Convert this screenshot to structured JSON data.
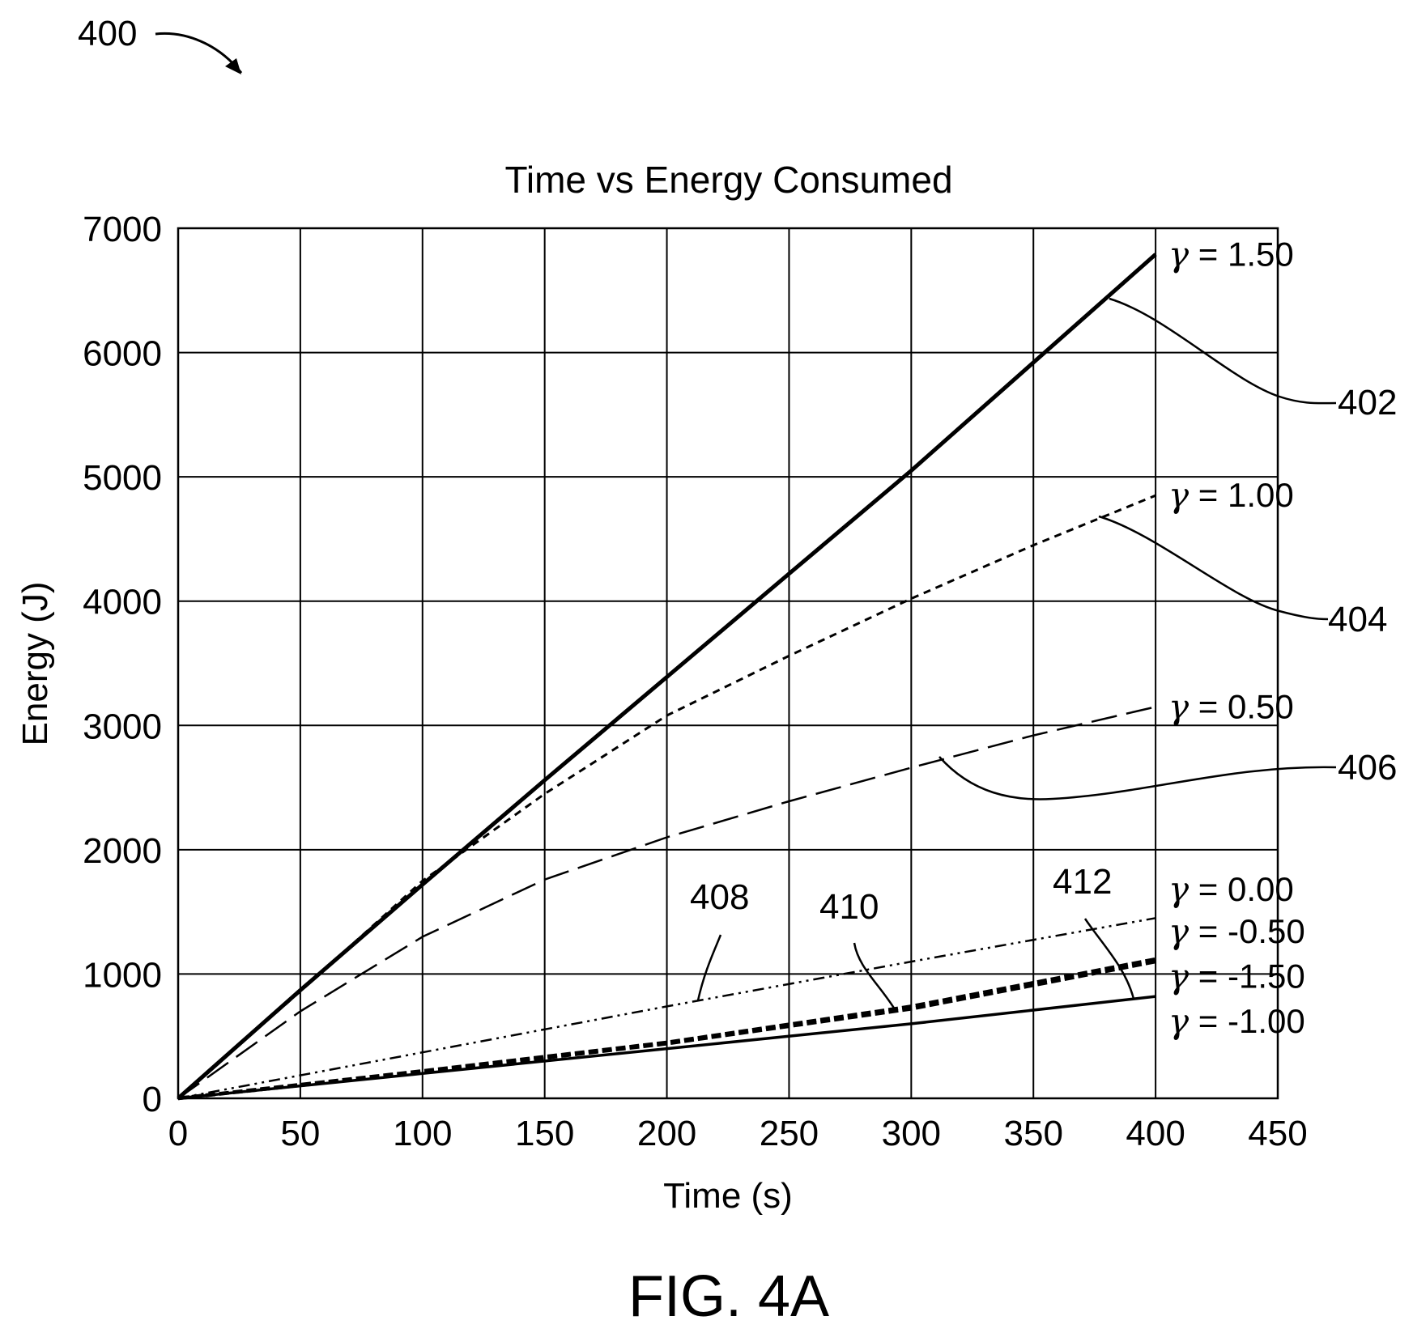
{
  "figure": {
    "ref_number": "400",
    "caption": "FIG. 4A"
  },
  "chart_data": {
    "type": "line",
    "title": "Time vs Energy Consumed",
    "xlabel": "Time (s)",
    "ylabel": "Energy (J)",
    "xlim": [
      0,
      450
    ],
    "ylim": [
      0,
      7000
    ],
    "x_ticks": [
      0,
      50,
      100,
      150,
      200,
      250,
      300,
      350,
      400,
      450
    ],
    "y_ticks": [
      0,
      1000,
      2000,
      3000,
      4000,
      5000,
      6000,
      7000
    ],
    "grid": true,
    "series": [
      {
        "name": "γ = 1.50",
        "gamma": "1.50",
        "ref": "402",
        "style": "solid-thick",
        "points": [
          [
            0,
            0
          ],
          [
            50,
            870
          ],
          [
            100,
            1720
          ],
          [
            150,
            2560
          ],
          [
            200,
            3390
          ],
          [
            250,
            4220
          ],
          [
            300,
            5050
          ],
          [
            350,
            5920
          ],
          [
            400,
            6790
          ]
        ]
      },
      {
        "name": "γ = 1.00",
        "gamma": "1.00",
        "ref": "404",
        "style": "short-dash",
        "points": [
          [
            0,
            0
          ],
          [
            50,
            860
          ],
          [
            100,
            1750
          ],
          [
            150,
            2450
          ],
          [
            200,
            3080
          ],
          [
            250,
            3560
          ],
          [
            300,
            4020
          ],
          [
            350,
            4450
          ],
          [
            400,
            4850
          ]
        ]
      },
      {
        "name": "γ = 0.50",
        "gamma": "0.50",
        "ref": "406",
        "style": "long-dash",
        "points": [
          [
            0,
            0
          ],
          [
            50,
            700
          ],
          [
            100,
            1300
          ],
          [
            150,
            1760
          ],
          [
            200,
            2100
          ],
          [
            250,
            2390
          ],
          [
            300,
            2660
          ],
          [
            350,
            2920
          ],
          [
            400,
            3150
          ]
        ]
      },
      {
        "name": "γ = 0.00",
        "gamma": "0.00",
        "ref": "408",
        "style": "dash-dot-dot",
        "points": [
          [
            0,
            0
          ],
          [
            100,
            370
          ],
          [
            200,
            740
          ],
          [
            300,
            1100
          ],
          [
            400,
            1450
          ]
        ]
      },
      {
        "name": "γ = -0.50",
        "gamma": "-0.50",
        "ref": "410",
        "style": "dash-thick",
        "points": [
          [
            0,
            0
          ],
          [
            100,
            220
          ],
          [
            200,
            450
          ],
          [
            300,
            740
          ],
          [
            400,
            1120
          ]
        ]
      },
      {
        "name": "γ = -1.50",
        "gamma": "-1.50",
        "ref": "410",
        "style": "dash-thick",
        "points": [
          [
            0,
            0
          ],
          [
            100,
            210
          ],
          [
            200,
            440
          ],
          [
            300,
            720
          ],
          [
            400,
            1100
          ]
        ]
      },
      {
        "name": "γ = -1.00",
        "gamma": "-1.00",
        "ref": "412",
        "style": "solid-thin",
        "points": [
          [
            0,
            0
          ],
          [
            100,
            200
          ],
          [
            200,
            400
          ],
          [
            300,
            600
          ],
          [
            400,
            820
          ]
        ]
      }
    ],
    "legend_labels": [
      {
        "text": "1.50",
        "y": 6790
      },
      {
        "text": "1.00",
        "y": 4850
      },
      {
        "text": "0.50",
        "y": 3150
      },
      {
        "text": "0.00",
        "y": 1680
      },
      {
        "text": "-0.50",
        "y": 1340
      },
      {
        "text": "-1.50",
        "y": 980
      },
      {
        "text": "-1.00",
        "y": 620
      }
    ],
    "annotations": [
      {
        "ref": "402",
        "series_index": 0
      },
      {
        "ref": "404",
        "series_index": 1
      },
      {
        "ref": "406",
        "series_index": 2
      },
      {
        "ref": "408",
        "series_index": 3
      },
      {
        "ref": "410",
        "series_index": 4
      },
      {
        "ref": "412",
        "series_index": 6
      }
    ]
  }
}
